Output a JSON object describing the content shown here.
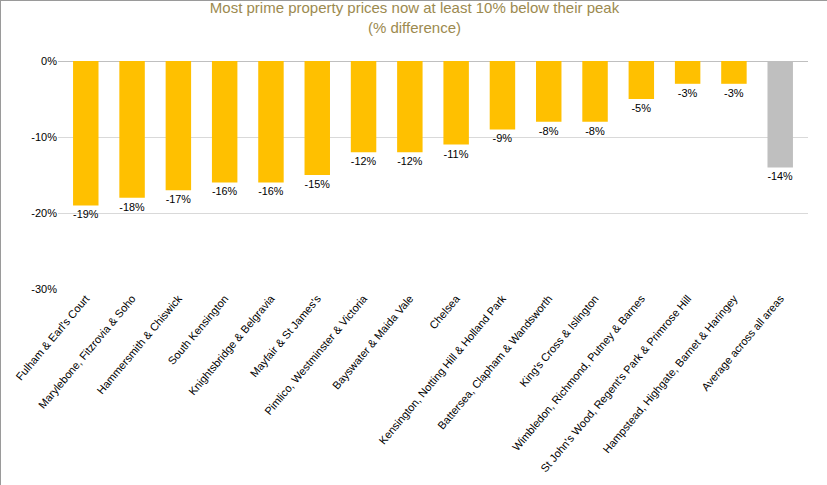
{
  "chart_data": {
    "type": "bar",
    "title": "Most prime property prices now at least 10% below their peak",
    "subtitle": "(% difference)",
    "categories": [
      "Fulham & Earl's Court",
      "Marylebone, Fitzrovia & Soho",
      "Hammersmith & Chiswick",
      "South Kensington",
      "Knightsbridge & Belgravia",
      "Mayfair & St James's",
      "Pimlico, Westminster & Victoria",
      "Bayswater & Maida Vale",
      "Chelsea",
      "Kensington, Notting Hill & Holland Park",
      "Battersea, Clapham & Wandsworth",
      "King's Cross & Islington",
      "Wimbledon, Richmond, Putney & Barnes",
      "St John's Wood, Regent's Park & Primrose Hill",
      "Hampstead, Highgate, Barnet & Haringey",
      "Average across all areas"
    ],
    "values": [
      -19,
      -18,
      -17,
      -16,
      -16,
      -15,
      -12,
      -12,
      -11,
      -9,
      -8,
      -8,
      -5,
      -3,
      -3,
      -14
    ],
    "value_labels": [
      "-19%",
      "-18%",
      "-17%",
      "-16%",
      "-16%",
      "-15%",
      "-12%",
      "-12%",
      "-11%",
      "-9%",
      "-8%",
      "-8%",
      "-5%",
      "-3%",
      "-3%",
      "-14%"
    ],
    "colors": [
      "#FFC000",
      "#FFC000",
      "#FFC000",
      "#FFC000",
      "#FFC000",
      "#FFC000",
      "#FFC000",
      "#FFC000",
      "#FFC000",
      "#FFC000",
      "#FFC000",
      "#FFC000",
      "#FFC000",
      "#FFC000",
      "#FFC000",
      "#BFBFBF"
    ],
    "ylim": [
      -30,
      0
    ],
    "yticks": [
      {
        "value": 0,
        "label": "0%"
      },
      {
        "value": -10,
        "label": "-10%"
      },
      {
        "value": -20,
        "label": "-20%"
      },
      {
        "value": -30,
        "label": "-30%"
      }
    ],
    "grid": true,
    "data_labels": true
  }
}
